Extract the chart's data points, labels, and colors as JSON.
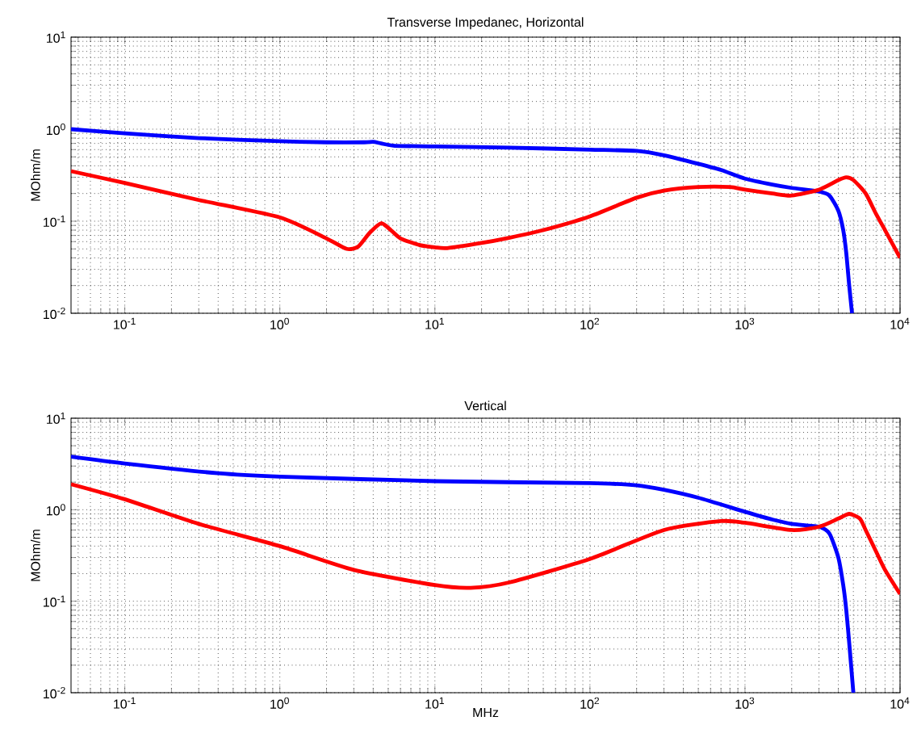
{
  "chart_data": [
    {
      "type": "line",
      "title": "Transverse Impedanec, Horizontal",
      "ylabel": "MOhm/m",
      "log": "xy",
      "grid": true,
      "line_style": "solid",
      "marker": "none",
      "xlim": [
        0.045,
        10000
      ],
      "ylim": [
        0.01,
        10
      ],
      "xticks": [
        {
          "value": 0.1,
          "label": "10$^{-1}$"
        },
        {
          "value": 1,
          "label": "10$^{0}$"
        },
        {
          "value": 10,
          "label": "10$^{1}$"
        },
        {
          "value": 100,
          "label": "10$^{2}$"
        },
        {
          "value": 1000,
          "label": "10$^{3}$"
        },
        {
          "value": 10000,
          "label": "10$^{4}$"
        }
      ],
      "yticks": [
        {
          "value": 0.01,
          "label": "10$^{-2}$"
        },
        {
          "value": 0.1,
          "label": "10$^{-1}$"
        },
        {
          "value": 1,
          "label": "10$^{0}$"
        },
        {
          "value": 10,
          "label": "10$^{1}$"
        }
      ],
      "series": [
        {
          "color": "#0000ff",
          "x": [
            0.045,
            0.1,
            0.3,
            1,
            2,
            3.5,
            4,
            4.5,
            5.5,
            10,
            30,
            100,
            200,
            300,
            500,
            700,
            1000,
            1500,
            2000,
            3000,
            3500,
            4000,
            4300,
            4500,
            4700,
            4900
          ],
          "values": [
            1.0,
            0.9,
            0.8,
            0.74,
            0.72,
            0.72,
            0.73,
            0.7,
            0.66,
            0.65,
            0.63,
            0.6,
            0.58,
            0.52,
            0.42,
            0.36,
            0.29,
            0.25,
            0.23,
            0.21,
            0.19,
            0.13,
            0.08,
            0.045,
            0.02,
            0.01
          ]
        },
        {
          "color": "#ff0000",
          "x": [
            0.045,
            0.1,
            0.3,
            1,
            2,
            2.7,
            3.2,
            3.8,
            4.5,
            5.2,
            6,
            8,
            10,
            12,
            20,
            30,
            50,
            100,
            200,
            300,
            500,
            800,
            1000,
            1500,
            2000,
            3000,
            4000,
            4500,
            5000,
            6000,
            7000,
            8000,
            10000
          ],
          "values": [
            0.35,
            0.26,
            0.17,
            0.11,
            0.065,
            0.05,
            0.053,
            0.075,
            0.095,
            0.08,
            0.065,
            0.055,
            0.052,
            0.051,
            0.058,
            0.066,
            0.08,
            0.113,
            0.18,
            0.215,
            0.235,
            0.235,
            0.22,
            0.2,
            0.19,
            0.22,
            0.28,
            0.3,
            0.28,
            0.2,
            0.12,
            0.08,
            0.04
          ]
        }
      ]
    },
    {
      "type": "line",
      "title": "Vertical",
      "xlabel": "MHz",
      "ylabel": "MOhm/m",
      "log": "xy",
      "grid": true,
      "line_style": "solid",
      "marker": "none",
      "xlim": [
        0.045,
        10000
      ],
      "ylim": [
        0.01,
        10
      ],
      "xticks": [
        {
          "value": 0.1,
          "label": "10$^{-1}$"
        },
        {
          "value": 1,
          "label": "10$^{0}$"
        },
        {
          "value": 10,
          "label": "10$^{1}$"
        },
        {
          "value": 100,
          "label": "10$^{2}$"
        },
        {
          "value": 1000,
          "label": "10$^{3}$"
        },
        {
          "value": 10000,
          "label": "10$^{4}$"
        }
      ],
      "yticks": [
        {
          "value": 0.01,
          "label": "10$^{-2}$"
        },
        {
          "value": 0.1,
          "label": "10$^{-1}$"
        },
        {
          "value": 1,
          "label": "10$^{0}$"
        },
        {
          "value": 10,
          "label": "10$^{1}$"
        }
      ],
      "series": [
        {
          "color": "#0000ff",
          "x": [
            0.045,
            0.1,
            0.4,
            1,
            10,
            100,
            200,
            300,
            500,
            1000,
            1500,
            2000,
            3000,
            3500,
            4000,
            4300,
            4500,
            4700,
            5000
          ],
          "values": [
            3.8,
            3.2,
            2.5,
            2.3,
            2.05,
            1.95,
            1.85,
            1.65,
            1.35,
            0.95,
            0.78,
            0.7,
            0.65,
            0.55,
            0.3,
            0.15,
            0.08,
            0.035,
            0.01
          ]
        },
        {
          "color": "#ff0000",
          "x": [
            0.045,
            0.1,
            0.3,
            1,
            3,
            10,
            17,
            30,
            100,
            300,
            700,
            1000,
            2000,
            3000,
            4000,
            4700,
            5500,
            6000,
            7000,
            8000,
            10000
          ],
          "values": [
            1.9,
            1.3,
            0.7,
            0.4,
            0.22,
            0.15,
            0.14,
            0.16,
            0.29,
            0.6,
            0.75,
            0.72,
            0.6,
            0.65,
            0.8,
            0.9,
            0.8,
            0.6,
            0.35,
            0.22,
            0.12
          ]
        }
      ]
    }
  ]
}
